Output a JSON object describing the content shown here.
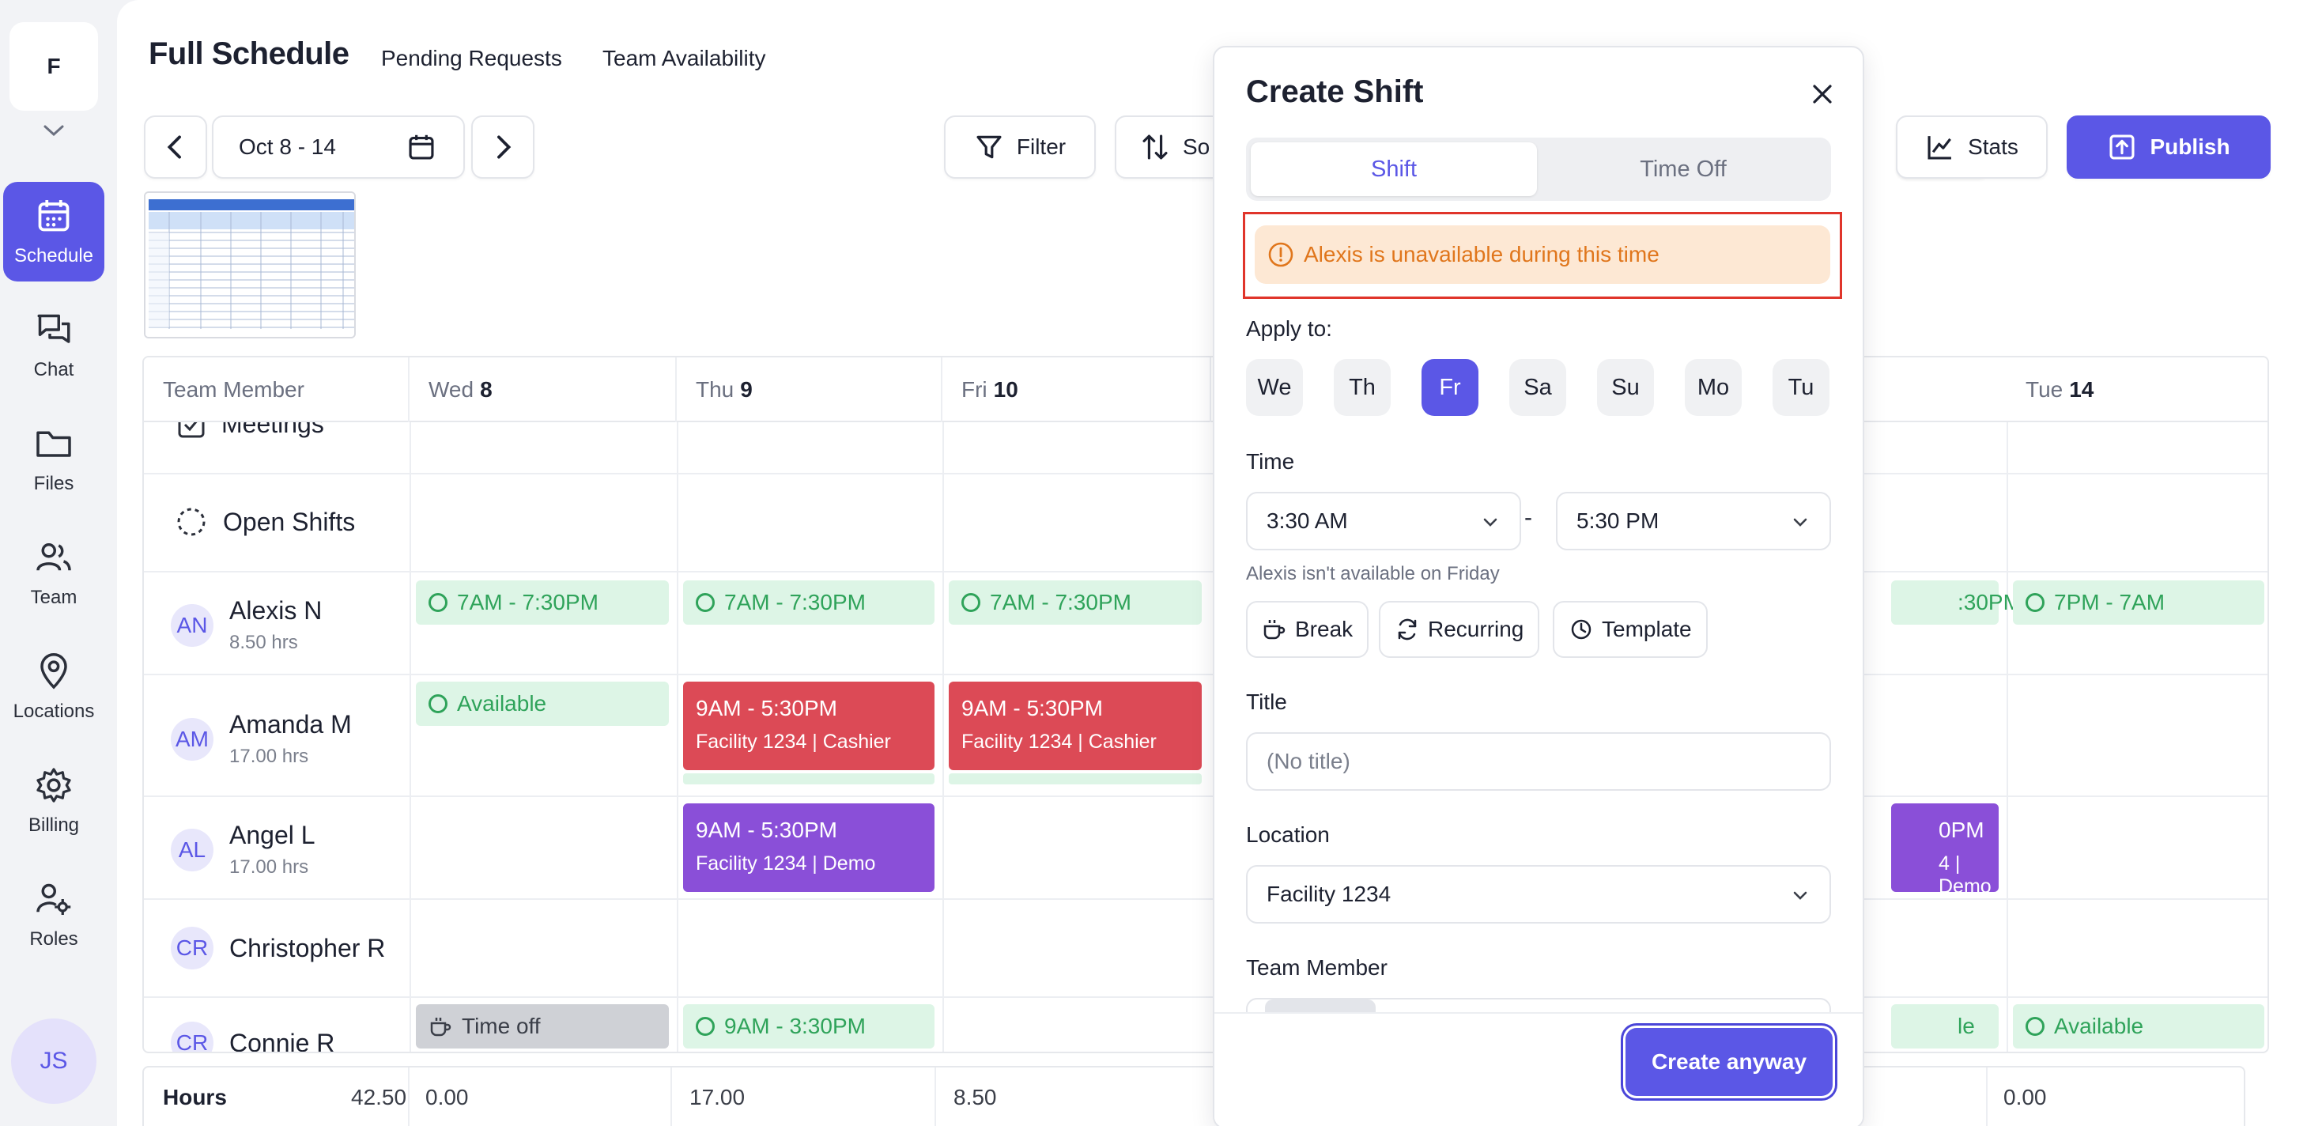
{
  "rail": {
    "org_initial": "F",
    "items": [
      {
        "label": "Schedule",
        "icon": "calendar-icon"
      },
      {
        "label": "Chat",
        "icon": "chat-icon"
      },
      {
        "label": "Files",
        "icon": "folder-icon"
      },
      {
        "label": "Team",
        "icon": "team-icon"
      },
      {
        "label": "Locations",
        "icon": "pin-icon"
      },
      {
        "label": "Billing",
        "icon": "gear-icon"
      },
      {
        "label": "Roles",
        "icon": "roles-icon"
      }
    ],
    "user_initials": "JS"
  },
  "header": {
    "title": "Full Schedule",
    "tabs": [
      "Pending Requests",
      "Team Availability"
    ]
  },
  "toolbar": {
    "date_range": "Oct 8 - 14",
    "filter_label": "Filter",
    "sort_label": "So",
    "stats_label": "Stats",
    "publish_label": "Publish"
  },
  "grid": {
    "member_col": "Team Member",
    "days": [
      {
        "dow": "Wed",
        "num": "8"
      },
      {
        "dow": "Thu",
        "num": "9"
      },
      {
        "dow": "Fri",
        "num": "10"
      },
      {
        "dow": "Tue",
        "num": "14"
      }
    ],
    "rows": {
      "meetings": "Meetings",
      "open_shifts": "Open Shifts",
      "members": [
        {
          "initials": "AN",
          "name": "Alexis N",
          "hours": "8.50 hrs"
        },
        {
          "initials": "AM",
          "name": "Amanda M",
          "hours": "17.00 hrs"
        },
        {
          "initials": "AL",
          "name": "Angel L",
          "hours": "17.00 hrs"
        },
        {
          "initials": "CR",
          "name": "Christopher R",
          "hours": ""
        },
        {
          "initials": "CR",
          "name": "Connie R",
          "hours": ""
        }
      ]
    },
    "cells": {
      "alexis": [
        "7AM - 7:30PM",
        "7AM - 7:30PM",
        "7AM - 7:30PM",
        ":30PM",
        "7PM - 7AM"
      ],
      "amanda_wed": "Available",
      "amanda_shift": {
        "time": "9AM - 5:30PM",
        "detail": "Facility 1234 | Cashier"
      },
      "angel_shift": {
        "time": "9AM - 5:30PM",
        "detail": "Facility 1234 | Demo"
      },
      "angel_partial": {
        "time": "0PM",
        "detail": "4 | Demo"
      },
      "connie_wed": "Time off",
      "connie_thu": "9AM - 3:30PM",
      "connie_partial": "le",
      "connie_tue": "Available"
    }
  },
  "hours_row": {
    "label": "Hours",
    "total": "42.50",
    "values": [
      "0.00",
      "17.00",
      "8.50",
      "0.00"
    ]
  },
  "modal": {
    "title": "Create Shift",
    "tab_shift": "Shift",
    "tab_timeoff": "Time Off",
    "alert": "Alexis is unavailable during this time",
    "apply_label": "Apply to:",
    "days": [
      "We",
      "Th",
      "Fr",
      "Sa",
      "Su",
      "Mo",
      "Tu"
    ],
    "selected_day": "Fr",
    "time_label": "Time",
    "start_time": "3:30 AM",
    "end_time": "5:30 PM",
    "time_sep": "-",
    "hint": "Alexis isn't available on Friday",
    "chips": [
      "Break",
      "Recurring",
      "Template"
    ],
    "title_label": "Title",
    "title_placeholder": "(No title)",
    "location_label": "Location",
    "location_value": "Facility 1234",
    "team_member_label": "Team Member",
    "create_label": "Create anyway"
  },
  "colors": {
    "accent": "#5b57e6",
    "shift_red": "#dc4a56",
    "shift_purple": "#8a4fd8",
    "available_green": "#2fa35a",
    "alert_orange": "#e0761c"
  }
}
